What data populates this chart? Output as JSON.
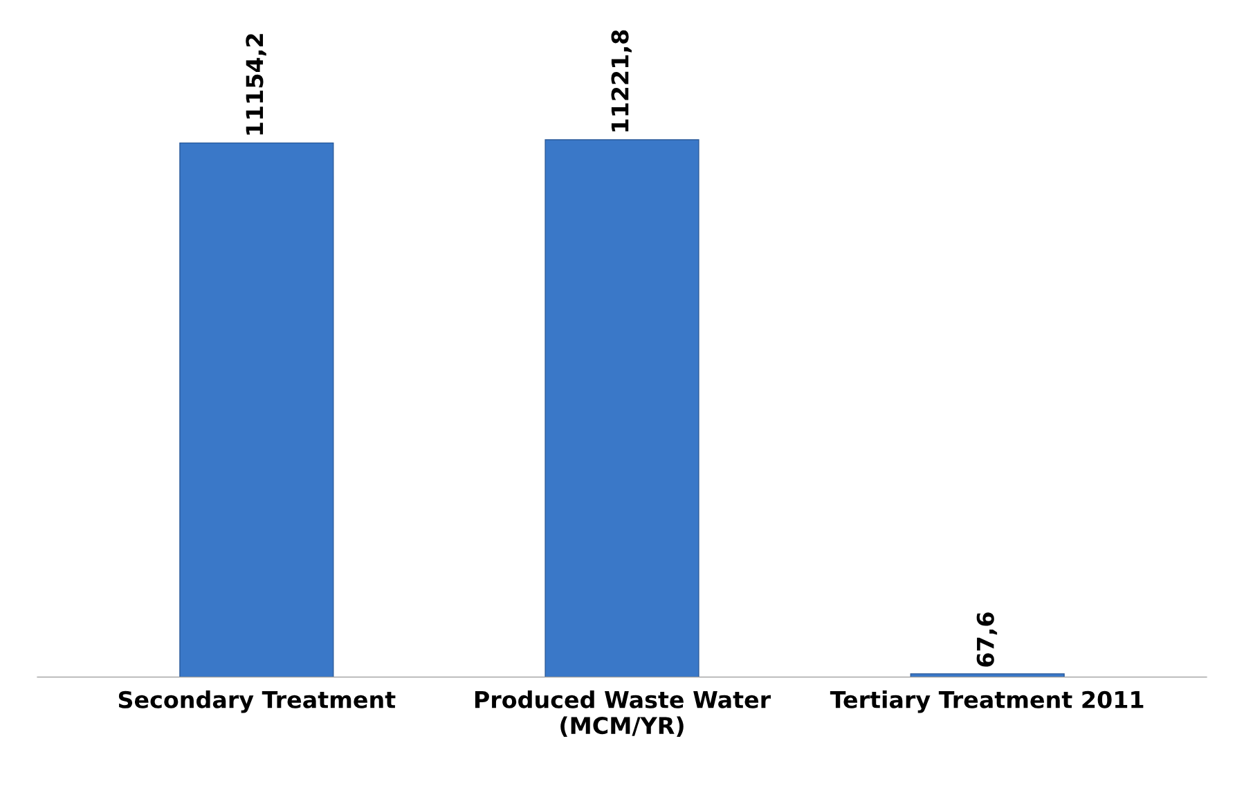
{
  "chart_data": {
    "type": "bar",
    "categories": [
      "Secondary Treatment",
      "Produced Waste Water\n(MCM/YR)",
      "Tertiary Treatment 2011"
    ],
    "values": [
      11154.2,
      11221.8,
      67.6
    ],
    "value_labels": [
      "11154,2",
      "11221,8",
      "67,6"
    ],
    "color": "#3a78c8"
  }
}
